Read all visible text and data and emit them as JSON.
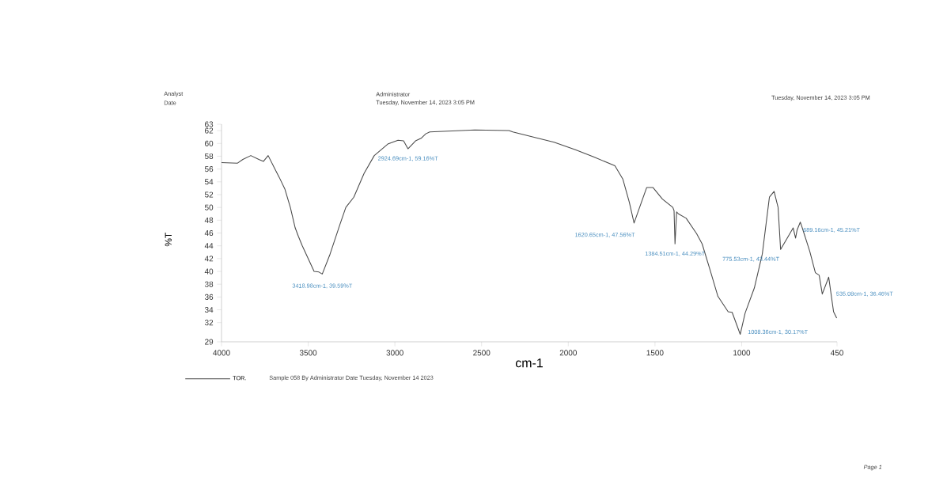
{
  "chart_data": {
    "type": "line",
    "xlabel": "cm-1",
    "ylabel": "%T",
    "xlim": [
      4000,
      450
    ],
    "ylim": [
      29,
      63
    ],
    "xticks": [
      4000,
      3500,
      3000,
      2500,
      2000,
      1500,
      1000,
      450
    ],
    "yticks": [
      29,
      32,
      34,
      36,
      38,
      40,
      42,
      44,
      46,
      48,
      50,
      52,
      54,
      56,
      58,
      60,
      62,
      63
    ],
    "legend": "bottom",
    "series": [
      {
        "name": "TOR.",
        "color": "#4a4a4a",
        "x": [
          4000,
          3909,
          3877,
          3831,
          3785,
          3758,
          3731,
          3694,
          3667,
          3635,
          3603,
          3575,
          3557,
          3534,
          3466,
          3438,
          3418.98,
          3374,
          3315,
          3283,
          3237,
          3178,
          3119,
          3041,
          2982,
          2950,
          2924.69,
          2881,
          2849,
          2822,
          2799,
          2539,
          2342,
          2320,
          2174,
          2082,
          1959,
          1854,
          1731,
          1685,
          1648,
          1620.65,
          1594,
          1548,
          1511,
          1457,
          1397,
          1390,
          1384.51,
          1375,
          1365,
          1320,
          1260,
          1228,
          1183,
          1137,
          1078,
          1055,
          1008.36,
          980,
          927,
          881,
          840,
          813,
          790,
          775.53,
          744,
          703,
          689.16,
          680,
          662,
          654,
          607,
          575,
          553,
          535.08,
          498,
          470,
          452
        ],
        "values": [
          57.0,
          56.9,
          57.5,
          58.1,
          57.5,
          57.2,
          58.1,
          56.1,
          54.7,
          52.9,
          50.0,
          46.8,
          45.5,
          44.0,
          40.0,
          39.9,
          39.59,
          42.7,
          47.5,
          50.0,
          51.6,
          55.3,
          58.1,
          59.9,
          60.5,
          60.4,
          59.16,
          60.4,
          60.8,
          61.5,
          61.8,
          62.1,
          62.0,
          61.8,
          60.8,
          60.2,
          59.0,
          57.9,
          56.5,
          54.4,
          50.8,
          47.56,
          49.6,
          53.1,
          53.1,
          51.3,
          50.0,
          49.5,
          44.29,
          49.3,
          49.0,
          48.3,
          45.9,
          44.3,
          40.3,
          36.1,
          33.7,
          33.6,
          30.17,
          33.5,
          37.4,
          42.7,
          51.6,
          52.5,
          50.0,
          43.44,
          44.9,
          46.8,
          45.21,
          46.5,
          47.7,
          47.1,
          43.1,
          39.8,
          39.4,
          36.46,
          39.1,
          33.7,
          32.7
        ]
      }
    ],
    "annotations": [
      "Analyst",
      "Date",
      "Administrator",
      "Tuesday, November 14, 2023 3:05 PM",
      "Tuesday, November 14, 2023 3:05 PM",
      "Sample 058 By Administrator Date Tuesday, November 14 2023",
      "Page 1",
      {
        "text": "3418.98cm-1, 39.59%T",
        "x": 3418.98,
        "y": 39.59
      },
      {
        "text": "2924.69cm-1, 59.16%T",
        "x": 2924.69,
        "y": 59.16
      },
      {
        "text": "1620.65cm-1, 47.56%T",
        "x": 1620.65,
        "y": 47.56
      },
      {
        "text": "1384.51cm-1, 44.29%T",
        "x": 1384.51,
        "y": 44.29
      },
      {
        "text": "1008.36cm-1, 30.17%T",
        "x": 1008.36,
        "y": 30.17
      },
      {
        "text": "775.53cm-1, 43.44%T",
        "x": 775.53,
        "y": 43.44
      },
      {
        "text": "689.16cm-1, 45.21%T",
        "x": 689.16,
        "y": 45.21
      },
      {
        "text": "535.08cm-1, 36.46%T",
        "x": 535.08,
        "y": 36.46
      }
    ]
  }
}
